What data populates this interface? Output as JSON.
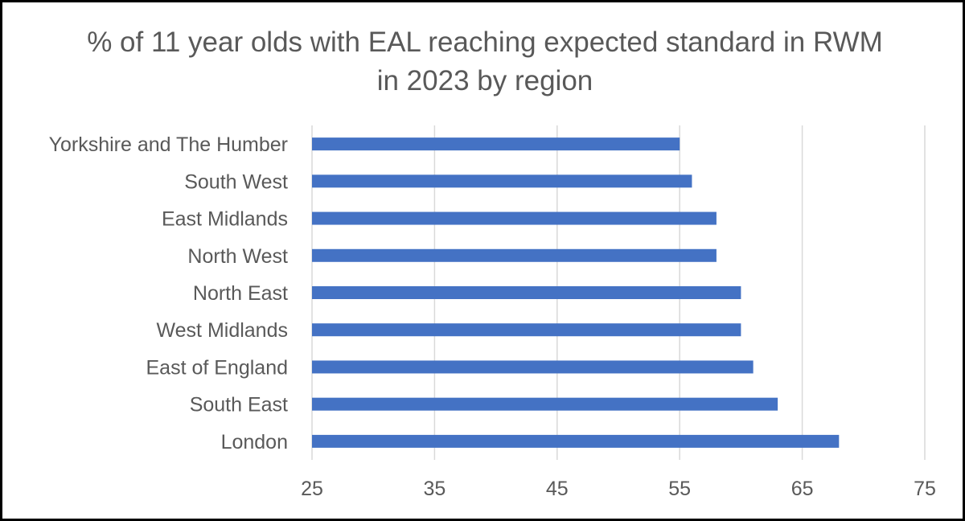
{
  "chart_data": {
    "type": "bar",
    "orientation": "horizontal",
    "title": "% of 11 year olds with EAL reaching expected standard in RWM in 2023 by region",
    "xlabel": "",
    "ylabel": "",
    "categories": [
      "Yorkshire and The Humber",
      "South West",
      "East Midlands",
      "North West",
      "North East",
      "West Midlands",
      "East of England",
      "South East",
      "London"
    ],
    "values": [
      55,
      56,
      58,
      58,
      60,
      60,
      61,
      63,
      68
    ],
    "xlim": [
      25,
      75
    ],
    "xticks": [
      25,
      35,
      45,
      55,
      65,
      75
    ],
    "grid": "vertical",
    "legend": "none",
    "bar_color": "#4472C4",
    "grid_color": "#D9D9D9",
    "text_color": "#595959"
  }
}
